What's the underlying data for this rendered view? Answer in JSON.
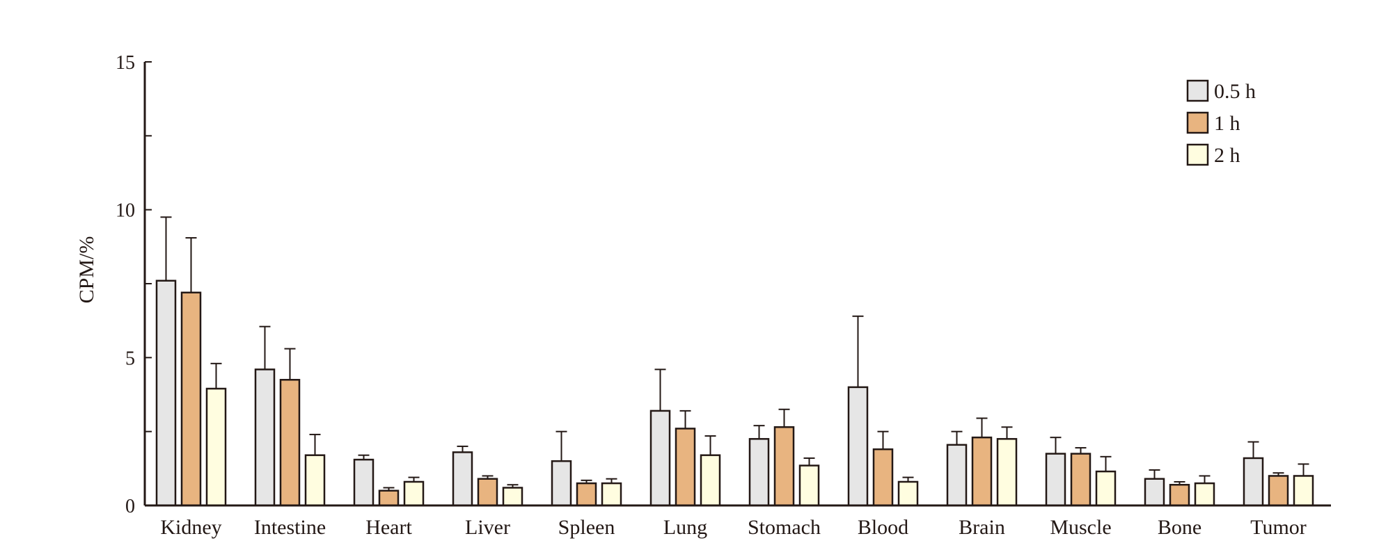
{
  "chart_data": {
    "type": "bar",
    "title": "",
    "xlabel": "",
    "ylabel": "CPM/%",
    "ylim": [
      0,
      15
    ],
    "yticks": [
      0,
      5,
      10,
      15
    ],
    "ytick_labels": [
      "0",
      "5",
      "10",
      "15"
    ],
    "yminor_ticks": [
      2.5,
      7.5,
      12.5
    ],
    "grid": false,
    "legend_position": "top-right",
    "categories": [
      "Kidney",
      "Intestine",
      "Heart",
      "Liver",
      "Spleen",
      "Lung",
      "Stomach",
      "Blood",
      "Brain",
      "Muscle",
      "Bone",
      "Tumor"
    ],
    "series": [
      {
        "name": "0.5 h",
        "color": "#e6e6e6",
        "values": [
          7.6,
          4.6,
          1.55,
          1.8,
          1.5,
          3.2,
          2.25,
          4.0,
          2.05,
          1.75,
          0.9,
          1.6
        ],
        "errors": [
          2.15,
          1.45,
          0.15,
          0.2,
          1.0,
          1.4,
          0.45,
          2.4,
          0.45,
          0.55,
          0.3,
          0.55
        ]
      },
      {
        "name": "1 h",
        "color": "#e8b480",
        "values": [
          7.2,
          4.25,
          0.5,
          0.9,
          0.75,
          2.6,
          2.65,
          1.9,
          2.3,
          1.75,
          0.7,
          1.0
        ],
        "errors": [
          1.85,
          1.05,
          0.1,
          0.1,
          0.1,
          0.6,
          0.6,
          0.6,
          0.65,
          0.2,
          0.1,
          0.1
        ]
      },
      {
        "name": "2 h",
        "color": "#fffde0",
        "values": [
          3.95,
          1.7,
          0.8,
          0.6,
          0.75,
          1.7,
          1.35,
          0.8,
          2.25,
          1.15,
          0.75,
          1.0
        ],
        "errors": [
          0.85,
          0.7,
          0.15,
          0.1,
          0.15,
          0.65,
          0.25,
          0.15,
          0.4,
          0.5,
          0.25,
          0.4
        ]
      }
    ]
  }
}
